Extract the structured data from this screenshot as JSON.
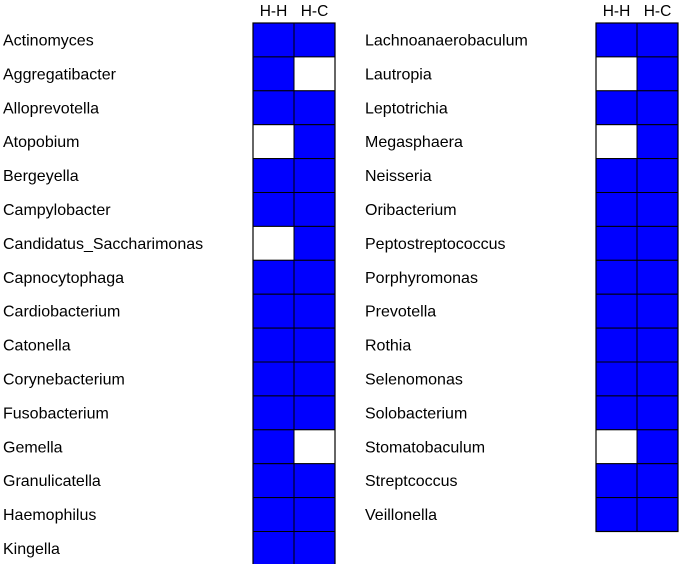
{
  "chart_data": {
    "type": "heatmap",
    "title": "",
    "columns": [
      "H-H",
      "H-C"
    ],
    "colors": {
      "present": "#0000ff",
      "absent": "#ffffff",
      "border": "#000000"
    },
    "panels": [
      {
        "rows": [
          {
            "label": "Actinomyces",
            "values": [
              1,
              1
            ]
          },
          {
            "label": "Aggregatibacter",
            "values": [
              1,
              0
            ]
          },
          {
            "label": "Alloprevotella",
            "values": [
              1,
              1
            ]
          },
          {
            "label": "Atopobium",
            "values": [
              0,
              1
            ]
          },
          {
            "label": "Bergeyella",
            "values": [
              1,
              1
            ]
          },
          {
            "label": "Campylobacter",
            "values": [
              1,
              1
            ]
          },
          {
            "label": "Candidatus_Saccharimonas",
            "values": [
              0,
              1
            ]
          },
          {
            "label": "Capnocytophaga",
            "values": [
              1,
              1
            ]
          },
          {
            "label": "Cardiobacterium",
            "values": [
              1,
              1
            ]
          },
          {
            "label": "Catonella",
            "values": [
              1,
              1
            ]
          },
          {
            "label": "Corynebacterium",
            "values": [
              1,
              1
            ]
          },
          {
            "label": "Fusobacterium",
            "values": [
              1,
              1
            ]
          },
          {
            "label": "Gemella",
            "values": [
              1,
              0
            ]
          },
          {
            "label": "Granulicatella",
            "values": [
              1,
              1
            ]
          },
          {
            "label": "Haemophilus",
            "values": [
              1,
              1
            ]
          },
          {
            "label": "Kingella",
            "values": [
              1,
              1
            ]
          }
        ]
      },
      {
        "rows": [
          {
            "label": "Lachnoanaerobaculum",
            "values": [
              1,
              1
            ]
          },
          {
            "label": "Lautropia",
            "values": [
              0,
              1
            ]
          },
          {
            "label": "Leptotrichia",
            "values": [
              1,
              1
            ]
          },
          {
            "label": "Megasphaera",
            "values": [
              0,
              1
            ]
          },
          {
            "label": "Neisseria",
            "values": [
              1,
              1
            ]
          },
          {
            "label": "Oribacterium",
            "values": [
              1,
              1
            ]
          },
          {
            "label": "Peptostreptococcus",
            "values": [
              1,
              1
            ]
          },
          {
            "label": "Porphyromonas",
            "values": [
              1,
              1
            ]
          },
          {
            "label": "Prevotella",
            "values": [
              1,
              1
            ]
          },
          {
            "label": "Rothia",
            "values": [
              1,
              1
            ]
          },
          {
            "label": "Selenomonas",
            "values": [
              1,
              1
            ]
          },
          {
            "label": "Solobacterium",
            "values": [
              1,
              1
            ]
          },
          {
            "label": "Stomatobaculum",
            "values": [
              0,
              1
            ]
          },
          {
            "label": "Streptcoccus",
            "values": [
              1,
              1
            ]
          },
          {
            "label": "Veillonella",
            "values": [
              1,
              1
            ]
          }
        ]
      }
    ]
  }
}
